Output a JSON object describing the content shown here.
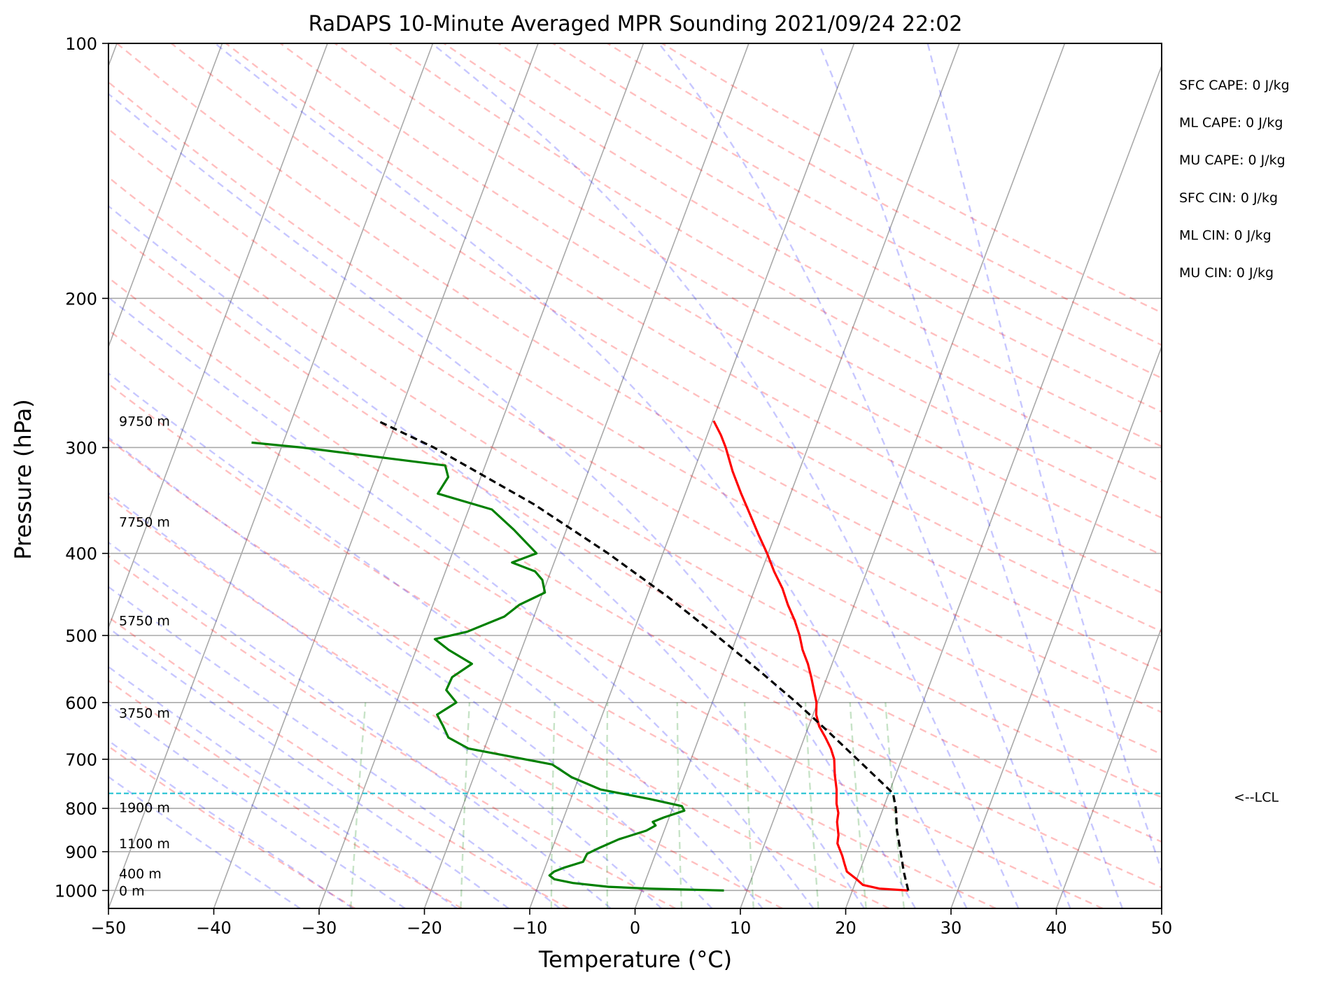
{
  "chart_data": {
    "type": "line",
    "title": "RaDAPS 10-Minute Averaged MPR Sounding 2021/09/24 22:02",
    "xlabel": "Temperature (°C)",
    "ylabel": "Pressure (hPa)",
    "xlim": [
      -50,
      50
    ],
    "ylim": [
      1050,
      100
    ],
    "yscale": "log",
    "grid": true,
    "x_ticks": [
      "−50",
      "−40",
      "−30",
      "−20",
      "−10",
      "0",
      "10",
      "20",
      "30",
      "40",
      "50"
    ],
    "y_ticks": [
      {
        "p": 100,
        "label": "100"
      },
      {
        "p": 200,
        "label": "200"
      },
      {
        "p": 300,
        "label": "300"
      },
      {
        "p": 400,
        "label": "400"
      },
      {
        "p": 500,
        "label": "500"
      },
      {
        "p": 600,
        "label": "600"
      },
      {
        "p": 700,
        "label": "700"
      },
      {
        "p": 800,
        "label": "800"
      },
      {
        "p": 900,
        "label": "900"
      },
      {
        "p": 1000,
        "label": "1000"
      }
    ],
    "height_labels": [
      {
        "p": 279,
        "label": "9750 m"
      },
      {
        "p": 367,
        "label": "7750 m"
      },
      {
        "p": 480,
        "label": "5750 m"
      },
      {
        "p": 617,
        "label": "3750 m"
      },
      {
        "p": 798,
        "label": "1900 m"
      },
      {
        "p": 880,
        "label": "1100 m"
      },
      {
        "p": 955,
        "label": "400 m"
      },
      {
        "p": 1000,
        "label": "0 m"
      }
    ],
    "lcl": {
      "p": 768,
      "label": "<--LCL"
    },
    "indices": [
      "SFC CAPE: 0 J/kg",
      "ML CAPE: 0 J/kg",
      "MU CAPE: 0 J/kg",
      "SFC CIN: 0 J/kg",
      "ML CIN: 0 J/kg",
      "MU CIN: 0 J/kg"
    ],
    "series": [
      {
        "role": "temperature",
        "color": "#ff0000",
        "points": [
          [
            1000,
            25.3
          ],
          [
            995,
            22.5
          ],
          [
            985,
            20.8
          ],
          [
            970,
            20.0
          ],
          [
            950,
            18.8
          ],
          [
            930,
            18.3
          ],
          [
            910,
            17.8
          ],
          [
            880,
            16.9
          ],
          [
            860,
            16.7
          ],
          [
            850,
            16.5
          ],
          [
            830,
            16.1
          ],
          [
            810,
            15.9
          ],
          [
            790,
            15.4
          ],
          [
            760,
            14.9
          ],
          [
            730,
            14.2
          ],
          [
            700,
            13.6
          ],
          [
            680,
            12.9
          ],
          [
            660,
            12.0
          ],
          [
            640,
            11.0
          ],
          [
            620,
            10.3
          ],
          [
            600,
            9.9
          ],
          [
            580,
            9.2
          ],
          [
            560,
            8.5
          ],
          [
            540,
            7.7
          ],
          [
            520,
            6.7
          ],
          [
            500,
            5.9
          ],
          [
            480,
            4.9
          ],
          [
            460,
            3.7
          ],
          [
            440,
            2.6
          ],
          [
            420,
            1.2
          ],
          [
            400,
            -0.1
          ],
          [
            380,
            -1.6
          ],
          [
            360,
            -3.1
          ],
          [
            340,
            -4.7
          ],
          [
            320,
            -6.3
          ],
          [
            300,
            -7.8
          ],
          [
            290,
            -8.7
          ],
          [
            279,
            -9.9
          ]
        ]
      },
      {
        "role": "dewpoint",
        "color": "#008000",
        "points": [
          [
            1000,
            7.8
          ],
          [
            995,
            0.6
          ],
          [
            990,
            -3.3
          ],
          [
            980,
            -6.8
          ],
          [
            970,
            -8.7
          ],
          [
            960,
            -9.3
          ],
          [
            950,
            -9.0
          ],
          [
            940,
            -8.2
          ],
          [
            925,
            -6.6
          ],
          [
            905,
            -6.5
          ],
          [
            890,
            -5.5
          ],
          [
            870,
            -4.0
          ],
          [
            850,
            -1.7
          ],
          [
            838,
            -1.0
          ],
          [
            830,
            -1.4
          ],
          [
            820,
            -0.5
          ],
          [
            805,
            1.2
          ],
          [
            795,
            0.8
          ],
          [
            780,
            -2.5
          ],
          [
            760,
            -7.5
          ],
          [
            735,
            -10.7
          ],
          [
            710,
            -13.0
          ],
          [
            680,
            -21.5
          ],
          [
            660,
            -23.8
          ],
          [
            640,
            -24.7
          ],
          [
            620,
            -25.7
          ],
          [
            600,
            -24.3
          ],
          [
            580,
            -25.7
          ],
          [
            560,
            -25.6
          ],
          [
            540,
            -24.2
          ],
          [
            520,
            -26.9
          ],
          [
            505,
            -28.6
          ],
          [
            495,
            -25.8
          ],
          [
            475,
            -22.8
          ],
          [
            460,
            -21.8
          ],
          [
            445,
            -19.8
          ],
          [
            430,
            -20.5
          ],
          [
            420,
            -21.5
          ],
          [
            410,
            -24.0
          ],
          [
            400,
            -22.0
          ],
          [
            375,
            -25.0
          ],
          [
            355,
            -27.8
          ],
          [
            340,
            -33.5
          ],
          [
            325,
            -33.1
          ],
          [
            315,
            -33.8
          ],
          [
            300,
            -48.0
          ],
          [
            296,
            -53.0
          ]
        ]
      },
      {
        "role": "parcel",
        "color": "#000000",
        "dashed": true,
        "points": [
          [
            1000,
            25.3
          ],
          [
            950,
            24.2
          ],
          [
            900,
            23.2
          ],
          [
            850,
            22.1
          ],
          [
            800,
            21.2
          ],
          [
            768,
            20.4
          ],
          [
            700,
            15.8
          ],
          [
            650,
            12.1
          ],
          [
            600,
            8.0
          ],
          [
            550,
            3.3
          ],
          [
            500,
            -2.0
          ],
          [
            450,
            -8.0
          ],
          [
            400,
            -15.2
          ],
          [
            350,
            -24.0
          ],
          [
            300,
            -35.5
          ],
          [
            279,
            -41.8
          ]
        ]
      }
    ]
  }
}
